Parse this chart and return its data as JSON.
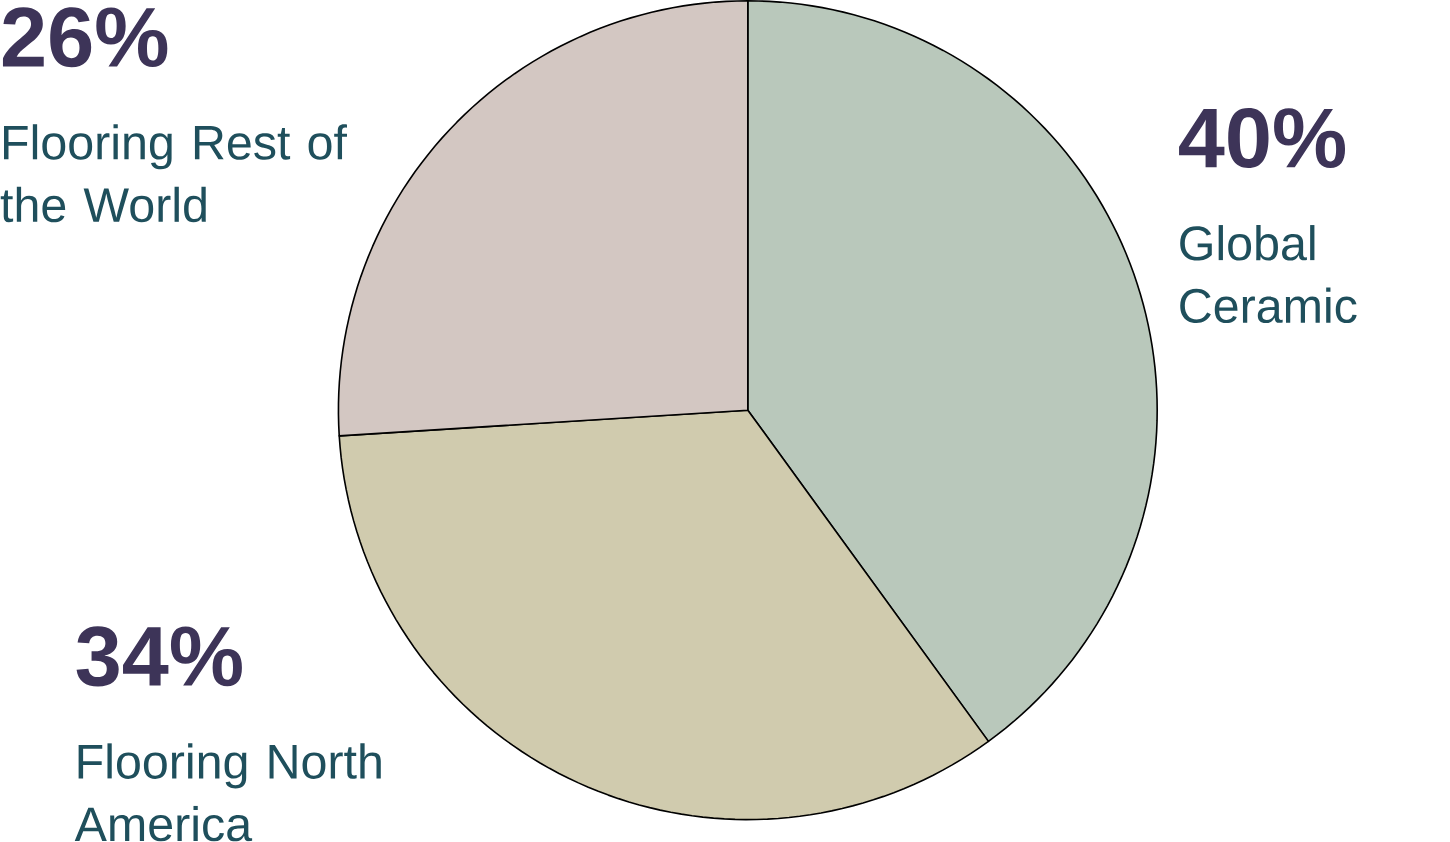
{
  "chart_data": {
    "type": "pie",
    "categories": [
      "Global Ceramic",
      "Flooring North America",
      "Flooring Rest of the World"
    ],
    "values": [
      40,
      34,
      26
    ],
    "value_labels": [
      "40%",
      "34%",
      "26%"
    ],
    "colors": [
      "#b9c8bb",
      "#d0cbae",
      "#d3c7c2"
    ]
  }
}
